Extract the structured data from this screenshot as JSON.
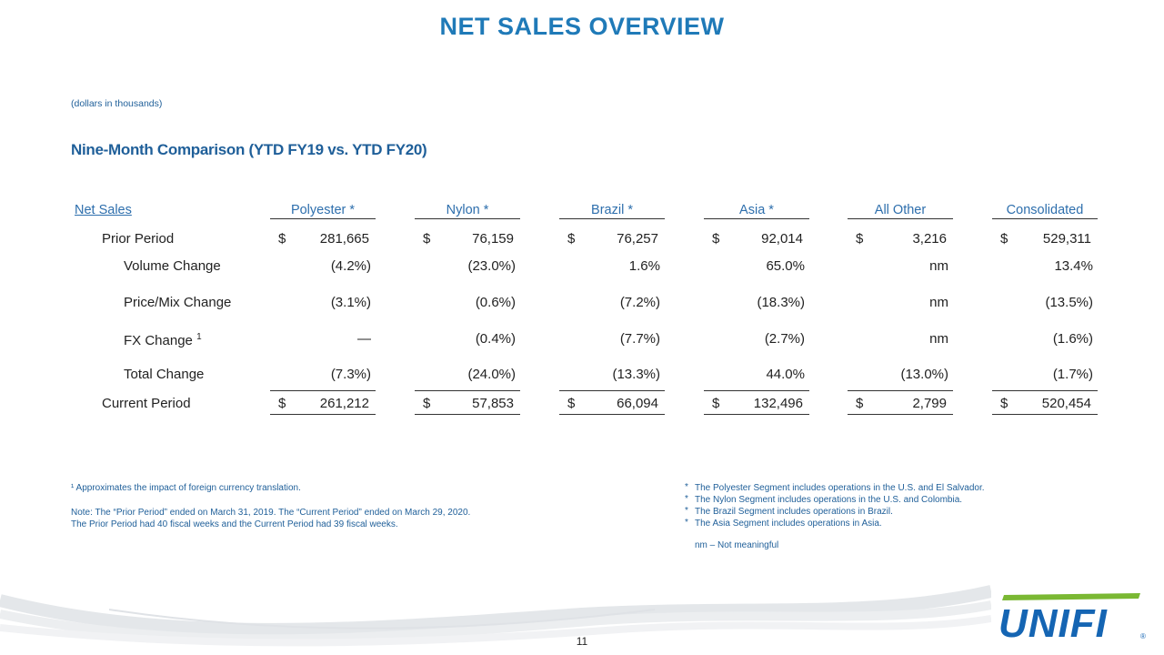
{
  "title": "NET SALES OVERVIEW",
  "units_note": "(dollars in thousands)",
  "subtitle": "Nine-Month Comparison (YTD FY19 vs. YTD FY20)",
  "table": {
    "header_label": "Net Sales",
    "columns": [
      "Polyester *",
      "Nylon *",
      "Brazil *",
      "Asia *",
      "All Other",
      "Consolidated"
    ],
    "currency_symbol": "$",
    "rows": [
      {
        "label": "Prior Period",
        "values": [
          "281,665",
          "76,159",
          "76,257",
          "92,014",
          "3,216",
          "529,311"
        ],
        "dollar": true
      },
      {
        "label": "Volume Change",
        "values": [
          "(4.2%)",
          "(23.0%)",
          "1.6%",
          "65.0%",
          "nm",
          "13.4%"
        ],
        "dollar": false
      },
      {
        "label": "Price/Mix Change",
        "values": [
          "(3.1%)",
          "(0.6%)",
          "(7.2%)",
          "(18.3%)",
          "nm",
          "(13.5%)"
        ],
        "dollar": false
      },
      {
        "label": "FX Change",
        "superscript": "1",
        "values": [
          "—",
          "(0.4%)",
          "(7.7%)",
          "(2.7%)",
          "nm",
          "(1.6%)"
        ],
        "dollar": false
      },
      {
        "label": "Total Change",
        "values": [
          "(7.3%)",
          "(24.0%)",
          "(13.3%)",
          "44.0%",
          "(13.0%)",
          "(1.7%)"
        ],
        "dollar": false
      },
      {
        "label": "Current Period",
        "values": [
          "261,212",
          "57,853",
          "66,094",
          "132,496",
          "2,799",
          "520,454"
        ],
        "dollar": true
      }
    ]
  },
  "footnotes": {
    "fx_note": "¹ Approximates the impact of foreign currency translation.",
    "period_note_1": "Note: The “Prior Period” ended on March 31, 2019. The “Current Period” ended on March 29, 2020.",
    "period_note_2": "The Prior Period had 40 fiscal weeks and the Current Period had 39 fiscal weeks.",
    "segment_bullets": [
      "The Polyester Segment includes operations in the U.S. and El Salvador.",
      "The Nylon Segment includes operations in the U.S. and Colombia.",
      "The Brazil Segment includes operations in Brazil.",
      "The Asia Segment includes operations in Asia."
    ],
    "bullet_symbol": "*",
    "nm_note": "nm – Not meaningful"
  },
  "page_number": "11",
  "logo_text": "UNIFI",
  "colors": {
    "title": "#1f7ab8",
    "accent": "#1f5f99",
    "logo_green": "#7ab833",
    "logo_blue": "#1565b3"
  }
}
